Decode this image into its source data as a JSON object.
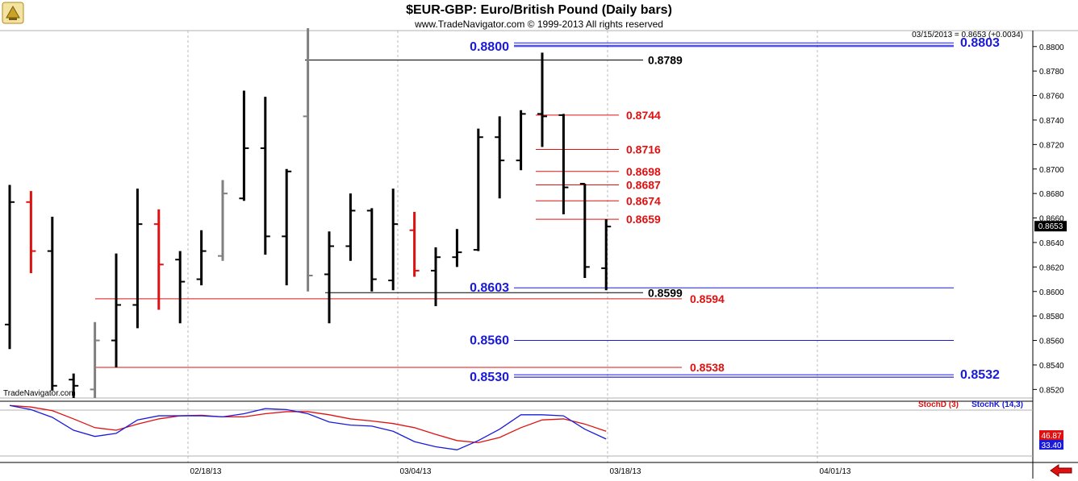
{
  "header": {
    "title": "$EUR-GBP:  Euro/British Pound  (Daily bars)",
    "copyright": "www.TradeNavigator.com © 1999-2013 All rights reserved",
    "last_quote": "03/15/2013 = 0.8653 (+0.0034)",
    "watermark": "TradeNavigator.com"
  },
  "price_panel": {
    "current_price_label": "0.8653"
  },
  "indicator": {
    "stochd_label": "StochD (3)",
    "stochk_label": "StochK (14,3)",
    "stochd_value": "46.87",
    "stochk_value": "33.40"
  },
  "colors": {
    "up_bar": "#000000",
    "down_bar_red": "#e01010",
    "gray_bar": "#808080",
    "blue_level": "#1a1adb",
    "red_level": "#e01010",
    "black_level": "#000000",
    "stochd": "#e01010",
    "stochk": "#1a1adb"
  },
  "icons": {
    "corner": "trade-navigator-icon",
    "back": "back-arrow-icon"
  },
  "chart_data": [
    {
      "type": "ohlc",
      "title": "$EUR-GBP:  Euro/British Pound  (Daily bars)",
      "ylim": [
        0.8513,
        0.8813
      ],
      "y_ticks": [
        "0.8800",
        "0.8780",
        "0.8760",
        "0.8740",
        "0.8720",
        "0.8700",
        "0.8680",
        "0.8660",
        "0.8640",
        "0.8620",
        "0.8600",
        "0.8580",
        "0.8560",
        "0.8540",
        "0.8520"
      ],
      "x_ticks": [
        "02/18/13",
        "03/04/13",
        "03/18/13",
        "04/01/13"
      ],
      "bars": [
        {
          "o": 0.8573,
          "h": 0.8687,
          "l": 0.8553,
          "c": 0.8673,
          "color": "black"
        },
        {
          "o": 0.8673,
          "h": 0.8682,
          "l": 0.8615,
          "c": 0.8633,
          "color": "red"
        },
        {
          "o": 0.8633,
          "h": 0.8661,
          "l": 0.8519,
          "c": 0.8523,
          "color": "black"
        },
        {
          "o": 0.8528,
          "h": 0.8533,
          "l": 0.8513,
          "c": 0.8523,
          "color": "black"
        },
        {
          "o": 0.852,
          "h": 0.8575,
          "l": 0.8513,
          "c": 0.856,
          "color": "gray"
        },
        {
          "o": 0.856,
          "h": 0.8631,
          "l": 0.8538,
          "c": 0.8589,
          "color": "black"
        },
        {
          "o": 0.8589,
          "h": 0.8684,
          "l": 0.857,
          "c": 0.8655,
          "color": "black"
        },
        {
          "o": 0.8655,
          "h": 0.8667,
          "l": 0.8585,
          "c": 0.8622,
          "color": "red"
        },
        {
          "o": 0.8626,
          "h": 0.8633,
          "l": 0.8574,
          "c": 0.8608,
          "color": "black"
        },
        {
          "o": 0.861,
          "h": 0.865,
          "l": 0.8605,
          "c": 0.8633,
          "color": "black"
        },
        {
          "o": 0.8629,
          "h": 0.8691,
          "l": 0.8625,
          "c": 0.868,
          "color": "gray"
        },
        {
          "o": 0.8676,
          "h": 0.8764,
          "l": 0.8674,
          "c": 0.8717,
          "color": "black"
        },
        {
          "o": 0.8717,
          "h": 0.8759,
          "l": 0.863,
          "c": 0.8645,
          "color": "black"
        },
        {
          "o": 0.8645,
          "h": 0.87,
          "l": 0.8605,
          "c": 0.8698,
          "color": "black"
        },
        {
          "o": 0.8743,
          "h": 0.8815,
          "l": 0.86,
          "c": 0.8613,
          "color": "gray"
        },
        {
          "o": 0.8614,
          "h": 0.8649,
          "l": 0.8574,
          "c": 0.8637,
          "color": "black"
        },
        {
          "o": 0.8637,
          "h": 0.868,
          "l": 0.8625,
          "c": 0.8666,
          "color": "black"
        },
        {
          "o": 0.8666,
          "h": 0.8668,
          "l": 0.86,
          "c": 0.861,
          "color": "black"
        },
        {
          "o": 0.8609,
          "h": 0.8684,
          "l": 0.8601,
          "c": 0.8655,
          "color": "black"
        },
        {
          "o": 0.865,
          "h": 0.8665,
          "l": 0.8612,
          "c": 0.8617,
          "color": "red"
        },
        {
          "o": 0.8617,
          "h": 0.8636,
          "l": 0.8588,
          "c": 0.8628,
          "color": "black"
        },
        {
          "o": 0.8628,
          "h": 0.8651,
          "l": 0.862,
          "c": 0.8632,
          "color": "black"
        },
        {
          "o": 0.8634,
          "h": 0.8733,
          "l": 0.8633,
          "c": 0.8726,
          "color": "black"
        },
        {
          "o": 0.8726,
          "h": 0.8743,
          "l": 0.8676,
          "c": 0.8707,
          "color": "black"
        },
        {
          "o": 0.8707,
          "h": 0.8748,
          "l": 0.8699,
          "c": 0.8745,
          "color": "black"
        },
        {
          "o": 0.8745,
          "h": 0.8795,
          "l": 0.8718,
          "c": 0.8743,
          "color": "black"
        },
        {
          "o": 0.8744,
          "h": 0.8745,
          "l": 0.8663,
          "c": 0.8685,
          "color": "black"
        },
        {
          "o": 0.8688,
          "h": 0.8688,
          "l": 0.8611,
          "c": 0.862,
          "color": "black"
        },
        {
          "o": 0.8619,
          "h": 0.8659,
          "l": 0.8601,
          "c": 0.8653,
          "color": "black"
        }
      ],
      "levels": [
        {
          "price": 0.8803,
          "label": "0.8803",
          "color": "blue",
          "double": true
        },
        {
          "price": 0.88,
          "label": "0.8800",
          "color": "blue",
          "double": false
        },
        {
          "price": 0.8789,
          "label": "0.8789",
          "color": "black",
          "double": false
        },
        {
          "price": 0.8744,
          "label": "0.8744",
          "color": "red",
          "double": false
        },
        {
          "price": 0.8716,
          "label": "0.8716",
          "color": "red",
          "double": false
        },
        {
          "price": 0.8698,
          "label": "0.8698",
          "color": "red",
          "double": false
        },
        {
          "price": 0.8687,
          "label": "0.8687",
          "color": "red",
          "double": false
        },
        {
          "price": 0.8674,
          "label": "0.8674",
          "color": "red",
          "double": false
        },
        {
          "price": 0.8659,
          "label": "0.8659",
          "color": "red",
          "double": false
        },
        {
          "price": 0.8603,
          "label": "0.8603",
          "color": "blue",
          "double": false
        },
        {
          "price": 0.8599,
          "label": "0.8599",
          "color": "black",
          "double": false
        },
        {
          "price": 0.8594,
          "label": "0.8594",
          "color": "red",
          "double": false
        },
        {
          "price": 0.856,
          "label": "0.8560",
          "color": "blue",
          "double": false
        },
        {
          "price": 0.8538,
          "label": "0.8538",
          "color": "red",
          "double": false
        },
        {
          "price": 0.8532,
          "label": "0.8532",
          "color": "blue",
          "double": true
        },
        {
          "price": 0.853,
          "label": "0.8530",
          "color": "blue",
          "double": false
        }
      ]
    },
    {
      "type": "line",
      "series": [
        {
          "name": "StochD (3)",
          "values": [
            98,
            95,
            88,
            72,
            55,
            50,
            62,
            72,
            78,
            79,
            76,
            76,
            82,
            86,
            86,
            80,
            72,
            68,
            63,
            55,
            42,
            30,
            26,
            36,
            55,
            70,
            72,
            62,
            48
          ]
        },
        {
          "name": "StochK (14,3)",
          "values": [
            98,
            90,
            75,
            50,
            38,
            44,
            70,
            78,
            78,
            78,
            76,
            82,
            92,
            90,
            82,
            66,
            60,
            58,
            48,
            28,
            18,
            12,
            30,
            52,
            80,
            80,
            78,
            52,
            33
          ]
        }
      ],
      "ylim": [
        0,
        100
      ]
    }
  ]
}
